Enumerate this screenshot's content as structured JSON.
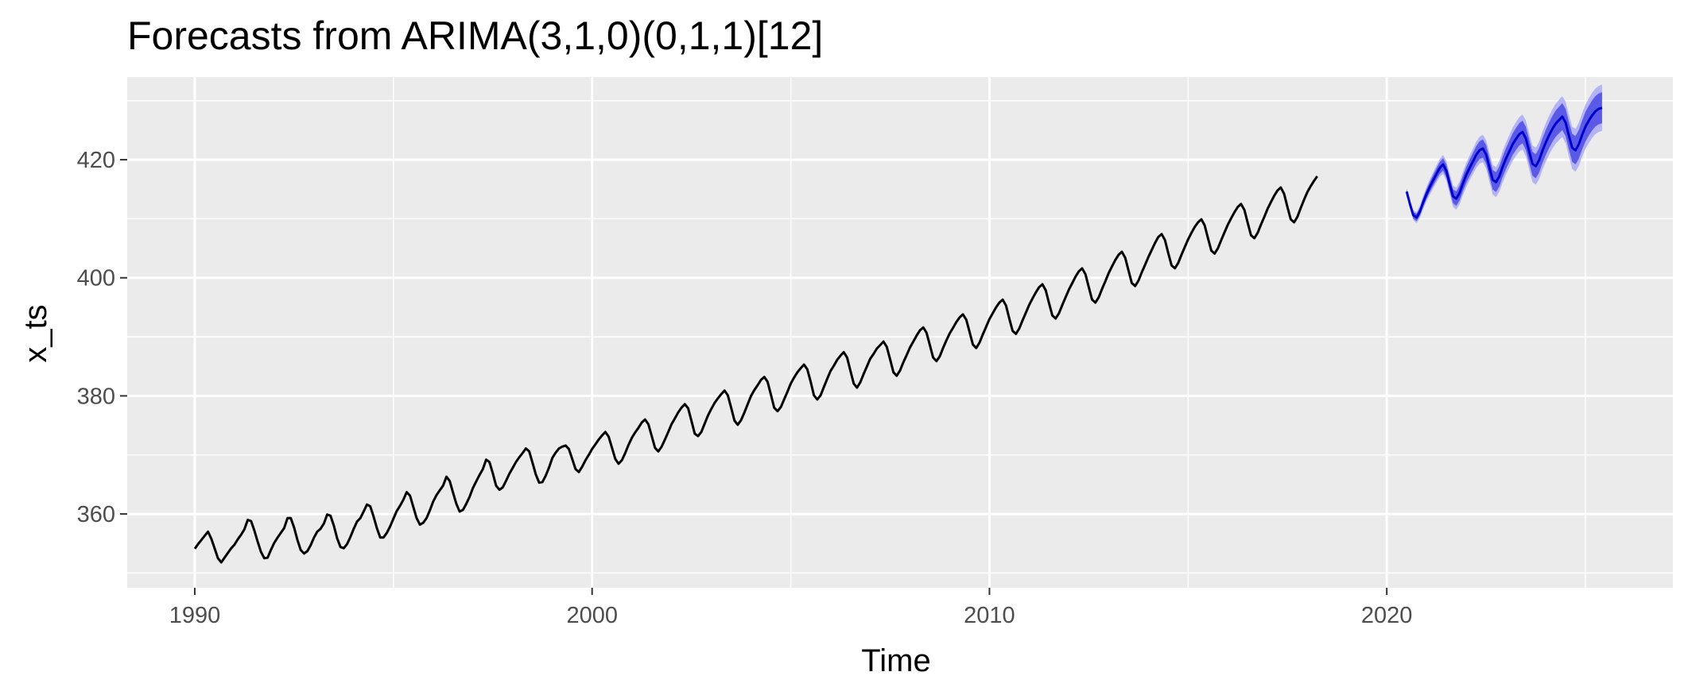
{
  "chart_data": {
    "type": "line",
    "title": "Forecasts from ARIMA(3,1,0)(0,1,1)[12]",
    "xlabel": "Time",
    "ylabel": "x_ts",
    "xlim": [
      1988.3,
      2027.2
    ],
    "ylim": [
      347.5,
      434.0
    ],
    "x_ticks": [
      1990,
      2000,
      2010,
      2020
    ],
    "x_tick_labels": [
      "1990",
      "2000",
      "2010",
      "2020"
    ],
    "y_ticks": [
      360,
      380,
      400,
      420
    ],
    "y_tick_labels": [
      "360",
      "380",
      "400",
      "420"
    ],
    "grid": true,
    "legend": "none",
    "colors": {
      "panel": "#ebebeb",
      "observed": "#000000",
      "forecast": "#0000cc",
      "interval_80": "#5a5ae6",
      "interval_95": "#b3b3f5"
    },
    "series": [
      {
        "role": "observed",
        "x_start": 1990.0,
        "frequency": 12,
        "values": [
          354.1,
          354.9,
          355.6,
          356.3,
          357.0,
          355.8,
          354.2,
          352.5,
          351.8,
          352.6,
          353.4,
          354.2,
          354.8,
          355.7,
          356.5,
          357.4,
          359.0,
          358.8,
          357.2,
          355.3,
          353.6,
          352.5,
          352.6,
          353.9,
          355.1,
          356.0,
          356.8,
          357.6,
          359.3,
          359.3,
          357.7,
          355.6,
          353.9,
          353.3,
          353.7,
          354.7,
          356.0,
          357.0,
          357.5,
          358.4,
          359.9,
          359.7,
          358.0,
          355.9,
          354.4,
          354.2,
          354.9,
          356.1,
          357.5,
          358.7,
          359.3,
          360.4,
          361.6,
          361.3,
          359.6,
          357.6,
          356.0,
          356.0,
          356.8,
          357.9,
          359.2,
          360.5,
          361.4,
          362.4,
          363.7,
          363.1,
          361.2,
          359.3,
          358.2,
          358.5,
          359.3,
          360.6,
          362.1,
          363.2,
          364.0,
          364.8,
          366.3,
          365.6,
          363.6,
          361.7,
          360.4,
          360.7,
          361.7,
          362.9,
          364.4,
          365.5,
          366.6,
          367.6,
          369.2,
          368.8,
          366.9,
          364.8,
          364.1,
          364.5,
          365.6,
          366.8,
          367.8,
          368.8,
          369.6,
          370.3,
          371.1,
          370.6,
          368.7,
          366.7,
          365.3,
          365.4,
          366.5,
          367.9,
          369.5,
          370.4,
          371.1,
          371.4,
          371.6,
          371.0,
          369.3,
          367.6,
          367.1,
          368.0,
          369.1,
          370.0,
          371.0,
          371.8,
          372.6,
          373.3,
          373.9,
          373.1,
          371.2,
          369.3,
          368.5,
          369.1,
          370.3,
          371.7,
          372.9,
          373.8,
          374.6,
          375.5,
          376.0,
          375.2,
          373.2,
          371.2,
          370.6,
          371.4,
          372.6,
          373.9,
          375.2,
          376.2,
          377.2,
          378.0,
          378.6,
          377.9,
          375.8,
          373.6,
          373.2,
          373.9,
          375.3,
          376.7,
          377.8,
          378.8,
          379.6,
          380.3,
          380.9,
          380.1,
          378.0,
          375.8,
          375.1,
          375.9,
          377.2,
          378.6,
          380.0,
          381.0,
          381.8,
          382.7,
          383.2,
          382.4,
          380.2,
          378.0,
          377.4,
          378.1,
          379.4,
          380.7,
          382.1,
          383.1,
          384.0,
          384.7,
          385.3,
          384.5,
          382.4,
          380.1,
          379.4,
          380.1,
          381.5,
          382.9,
          384.2,
          385.1,
          386.1,
          386.8,
          387.4,
          386.5,
          384.3,
          382.1,
          381.4,
          382.3,
          383.7,
          385.0,
          386.3,
          387.1,
          388.0,
          388.6,
          389.2,
          388.3,
          386.2,
          384.0,
          383.4,
          384.3,
          385.7,
          386.9,
          388.2,
          389.2,
          390.2,
          391.1,
          391.6,
          390.7,
          388.6,
          386.5,
          385.9,
          386.7,
          388.1,
          389.4,
          390.6,
          391.5,
          392.5,
          393.3,
          393.8,
          392.9,
          390.8,
          388.7,
          388.1,
          389.0,
          390.4,
          391.7,
          393.0,
          394.0,
          395.0,
          395.8,
          396.3,
          395.3,
          393.1,
          391.0,
          390.5,
          391.4,
          392.8,
          394.1,
          395.4,
          396.5,
          397.5,
          398.4,
          398.9,
          397.9,
          395.7,
          393.6,
          393.1,
          394.0,
          395.4,
          396.7,
          398.0,
          399.1,
          400.2,
          401.1,
          401.6,
          400.6,
          398.4,
          396.3,
          395.8,
          396.7,
          398.1,
          399.4,
          400.8,
          401.9,
          403.0,
          403.9,
          404.4,
          403.4,
          401.2,
          399.1,
          398.6,
          399.5,
          400.9,
          402.2,
          403.5,
          404.7,
          405.9,
          406.9,
          407.4,
          406.4,
          404.2,
          402.1,
          401.6,
          402.5,
          403.9,
          405.2,
          406.5,
          407.6,
          408.6,
          409.4,
          409.9,
          408.9,
          406.7,
          404.6,
          404.1,
          405.0,
          406.4,
          407.7,
          409.0,
          410.1,
          411.1,
          412.0,
          412.5,
          411.5,
          409.3,
          407.2,
          406.7,
          407.6,
          409.0,
          410.3,
          411.7,
          412.8,
          413.9,
          414.8,
          415.3,
          414.2,
          412.0,
          409.9,
          409.4,
          410.3,
          411.8,
          413.2,
          414.5,
          415.5,
          416.4,
          417.2
        ]
      },
      {
        "role": "forecast",
        "x_start": 2020.5,
        "frequency": 12,
        "values": [
          414.6,
          412.5,
          410.6,
          410.2,
          411.2,
          412.8,
          414.2,
          415.4,
          416.5,
          417.6,
          418.6,
          419.2,
          418.1,
          415.9,
          413.8,
          413.4,
          414.4,
          416.0,
          417.4,
          418.6,
          419.7,
          420.8,
          421.6,
          421.9,
          420.9,
          418.7,
          416.6,
          416.2,
          417.2,
          418.8,
          420.2,
          421.4,
          422.6,
          423.5,
          424.3,
          424.7,
          423.6,
          421.4,
          419.3,
          418.9,
          419.9,
          421.5,
          422.9,
          424.1,
          425.2,
          426.1,
          426.7,
          427.3,
          426.3,
          424.1,
          422.0,
          421.6,
          422.6,
          424.2,
          425.6,
          426.6,
          427.5,
          428.2,
          428.6,
          428.8
        ],
        "interval_80_halfwidth": [
          0.35,
          0.45,
          0.55,
          0.62,
          0.68,
          0.74,
          0.8,
          0.85,
          0.9,
          0.95,
          1.0,
          1.05,
          1.1,
          1.14,
          1.18,
          1.22,
          1.26,
          1.3,
          1.34,
          1.38,
          1.42,
          1.46,
          1.5,
          1.54,
          1.58,
          1.62,
          1.65,
          1.68,
          1.71,
          1.74,
          1.77,
          1.8,
          1.83,
          1.86,
          1.89,
          1.92,
          1.95,
          1.98,
          2.01,
          2.04,
          2.07,
          2.1,
          2.13,
          2.16,
          2.19,
          2.22,
          2.25,
          2.28,
          2.31,
          2.34,
          2.37,
          2.4,
          2.43,
          2.46,
          2.49,
          2.52,
          2.55,
          2.58,
          2.61,
          2.64
        ],
        "interval_95_halfwidth": [
          0.55,
          0.7,
          0.85,
          0.95,
          1.04,
          1.13,
          1.22,
          1.3,
          1.38,
          1.45,
          1.52,
          1.6,
          1.68,
          1.74,
          1.8,
          1.86,
          1.92,
          1.98,
          2.04,
          2.1,
          2.16,
          2.22,
          2.28,
          2.34,
          2.4,
          2.46,
          2.51,
          2.56,
          2.61,
          2.66,
          2.71,
          2.76,
          2.81,
          2.86,
          2.91,
          2.96,
          3.01,
          3.06,
          3.1,
          3.14,
          3.18,
          3.22,
          3.26,
          3.3,
          3.34,
          3.38,
          3.42,
          3.46,
          3.5,
          3.54,
          3.58,
          3.62,
          3.66,
          3.7,
          3.74,
          3.78,
          3.82,
          3.86,
          3.9,
          3.94
        ]
      }
    ]
  }
}
